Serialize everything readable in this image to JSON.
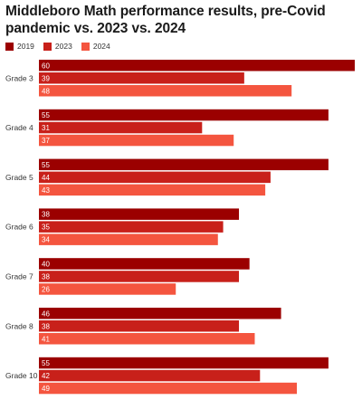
{
  "chart_data": {
    "type": "bar",
    "orientation": "horizontal",
    "title": "Middleboro Math performance results, pre-Covid pandemic vs. 2023 vs. 2024",
    "categories": [
      "Grade 3",
      "Grade 4",
      "Grade 5",
      "Grade 6",
      "Grade 7",
      "Grade 8",
      "Grade 10"
    ],
    "series": [
      {
        "name": "2019",
        "color": "#9b0000",
        "values": [
          60,
          55,
          55,
          38,
          40,
          46,
          55
        ]
      },
      {
        "name": "2023",
        "color": "#c8201a",
        "values": [
          39,
          31,
          44,
          35,
          38,
          38,
          42
        ]
      },
      {
        "name": "2024",
        "color": "#f4553f",
        "values": [
          48,
          37,
          43,
          34,
          26,
          41,
          49
        ]
      }
    ],
    "xlim": [
      0,
      60
    ],
    "legend_position": "top-left",
    "grid": false
  }
}
